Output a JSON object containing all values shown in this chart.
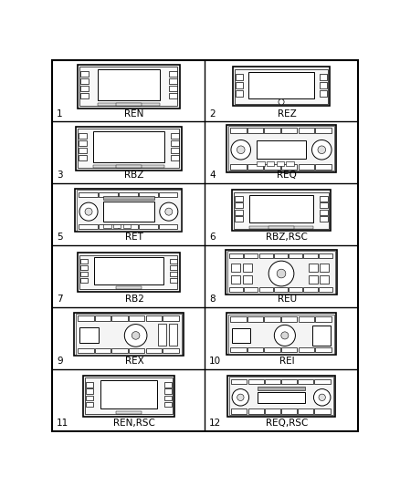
{
  "radios": [
    {
      "num": 1,
      "label": "REN",
      "type": "screen_buttons"
    },
    {
      "num": 2,
      "label": "REZ",
      "type": "screen_buttons_compact"
    },
    {
      "num": 3,
      "label": "RBZ",
      "type": "screen_buttons_wide"
    },
    {
      "num": 4,
      "label": "REQ",
      "type": "deck_knobs"
    },
    {
      "num": 5,
      "label": "RET",
      "type": "deck_knobs2"
    },
    {
      "num": 6,
      "label": "RBZ,RSC",
      "type": "screen_buttons_compact2"
    },
    {
      "num": 7,
      "label": "RB2",
      "type": "screen_buttons_slim"
    },
    {
      "num": 8,
      "label": "REU",
      "type": "deck_bigknob"
    },
    {
      "num": 9,
      "label": "REX",
      "type": "deck_bigknob2"
    },
    {
      "num": 10,
      "label": "REI",
      "type": "deck_bigknob3"
    },
    {
      "num": 11,
      "label": "REN,RSC",
      "type": "screen_buttons_small"
    },
    {
      "num": 12,
      "label": "REQ,RSC",
      "type": "deck_knobs3"
    }
  ],
  "bg": "#ffffff",
  "fg": "#000000",
  "gray": "#cccccc"
}
